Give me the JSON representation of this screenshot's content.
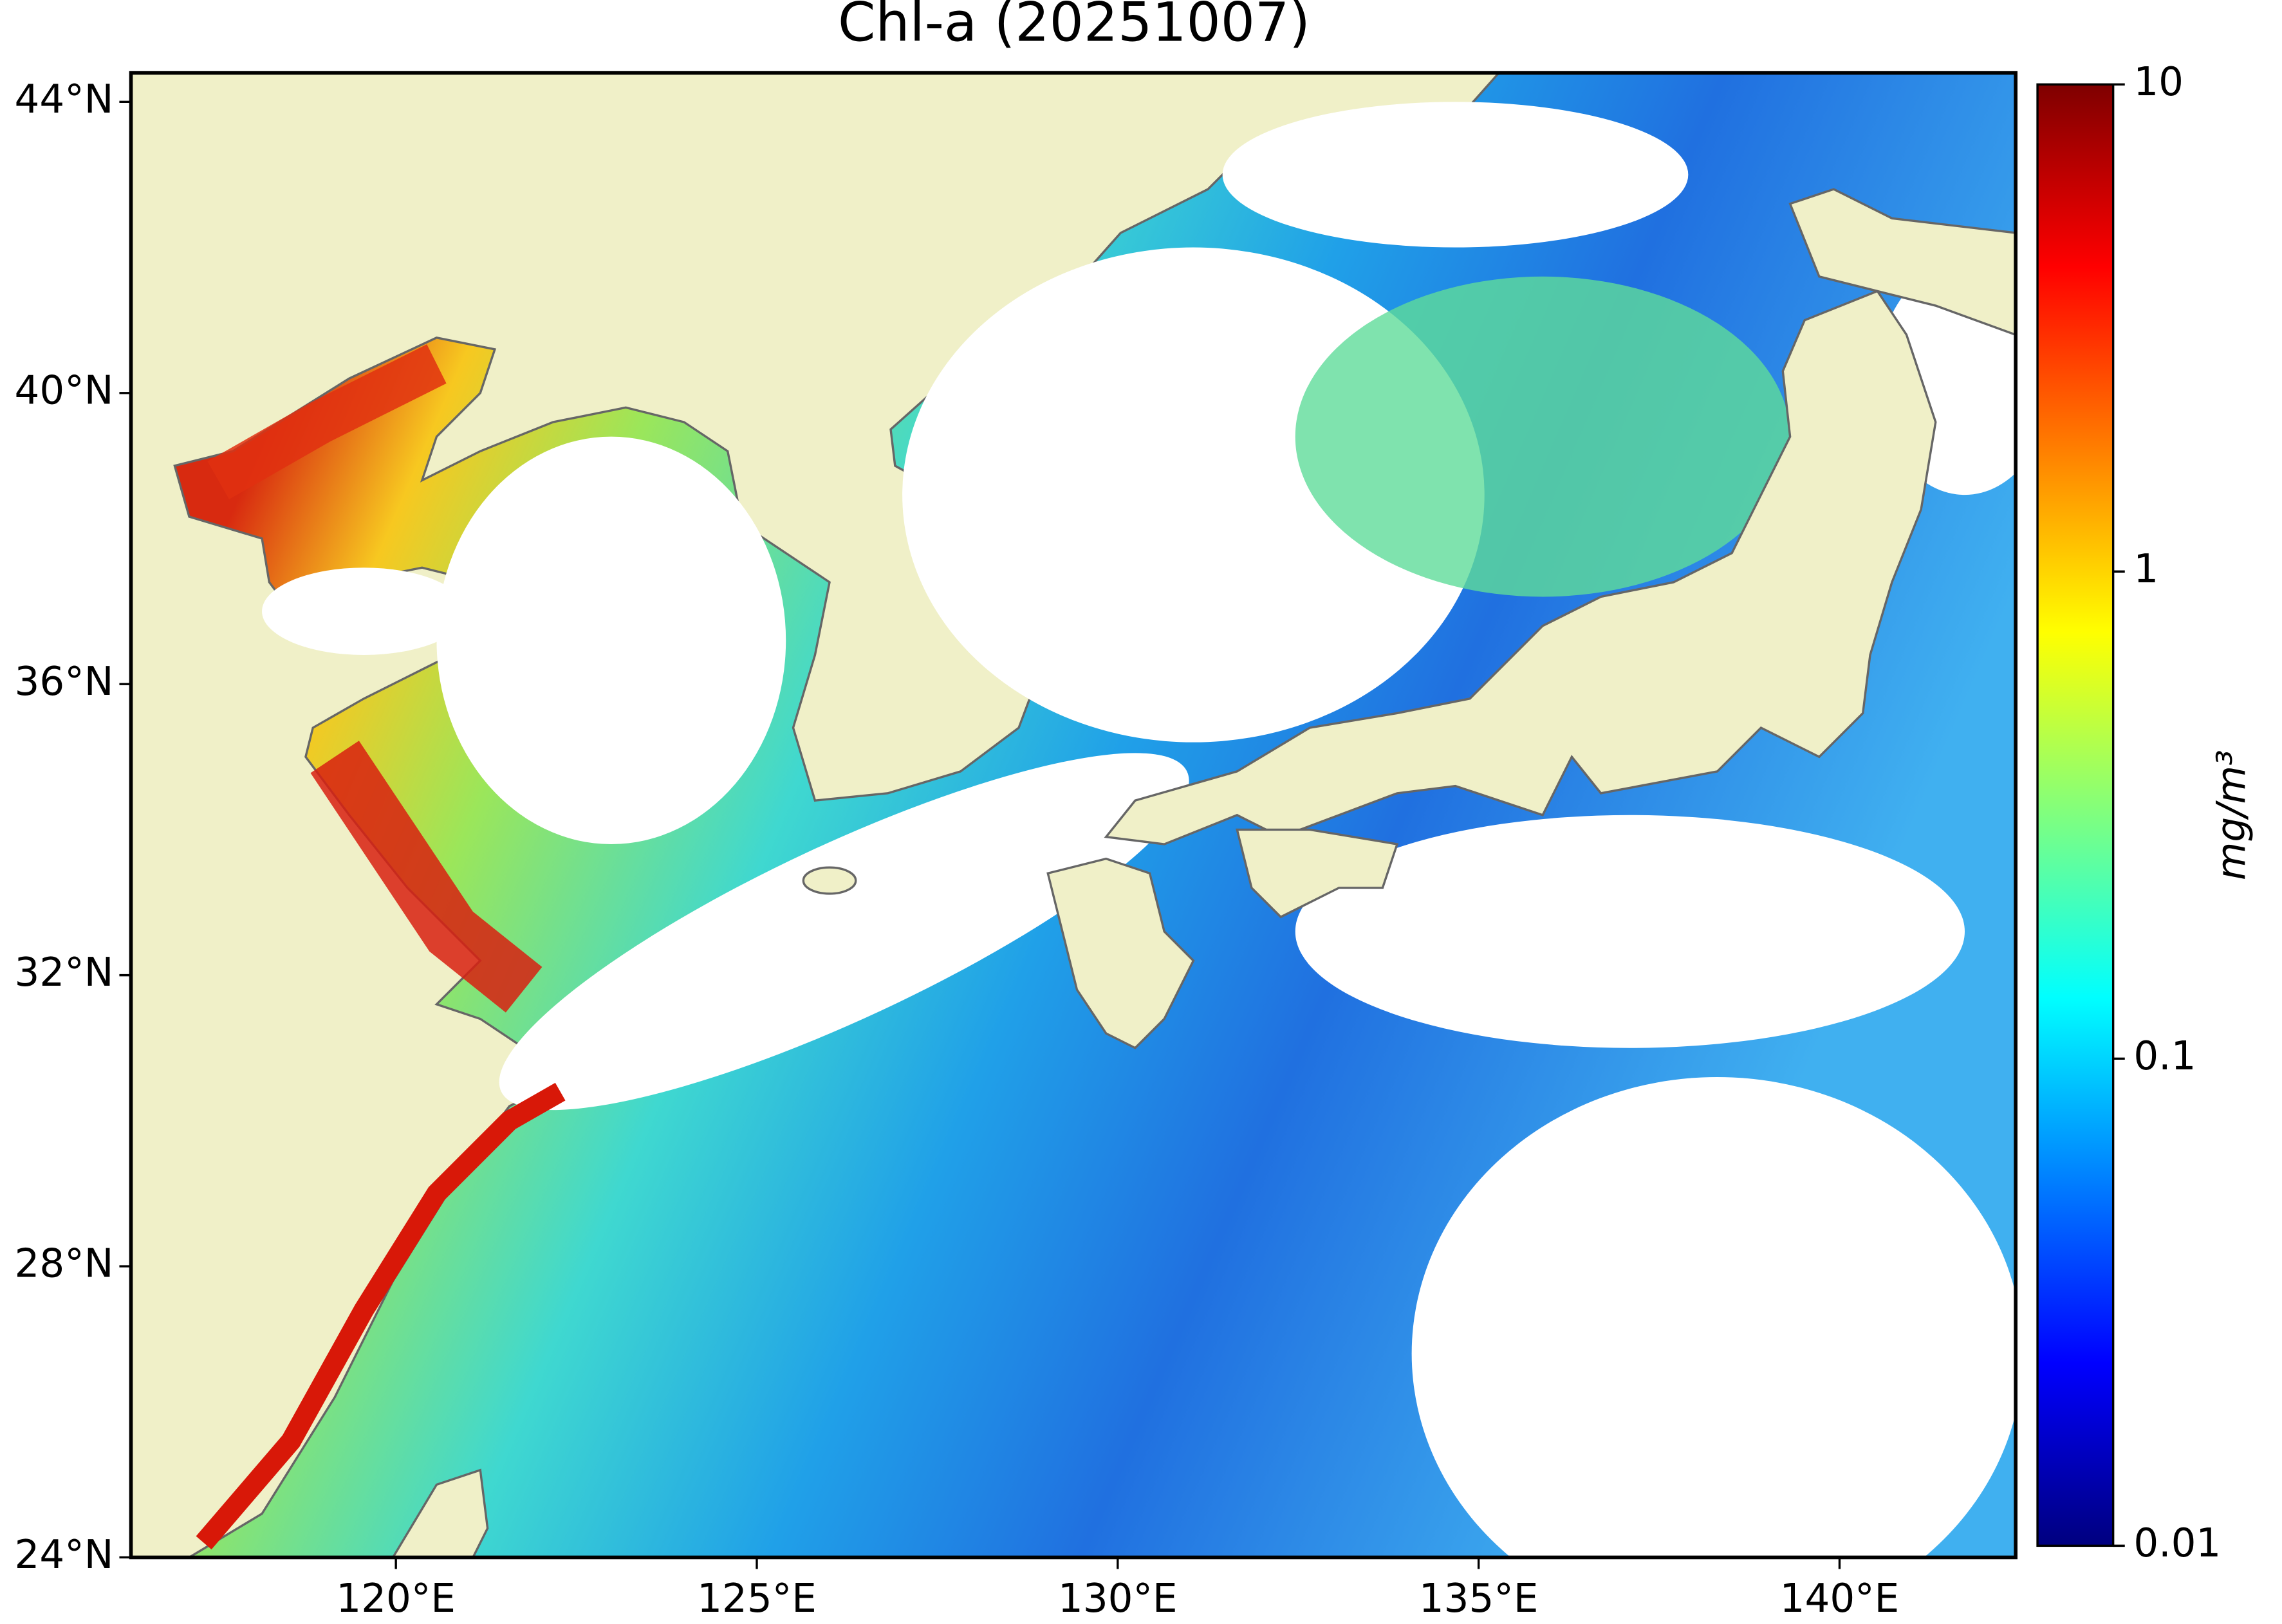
{
  "chart_data": {
    "type": "map",
    "title": "Chl-a (20251007)",
    "xlim": [
      116.33,
      142.44
    ],
    "ylim": [
      24,
      44.4
    ],
    "xticks": [
      {
        "value": 120,
        "label": "120°E"
      },
      {
        "value": 125,
        "label": "125°E"
      },
      {
        "value": 130,
        "label": "130°E"
      },
      {
        "value": 135,
        "label": "135°E"
      },
      {
        "value": 140,
        "label": "140°E"
      }
    ],
    "yticks": [
      {
        "value": 24,
        "label": "24°N"
      },
      {
        "value": 28,
        "label": "28°N"
      },
      {
        "value": 32,
        "label": "32°N"
      },
      {
        "value": 36,
        "label": "36°N"
      },
      {
        "value": 40,
        "label": "40°N"
      },
      {
        "value": 44,
        "label": "44°N"
      }
    ],
    "colorbar": {
      "label": "mg/m³",
      "lim": [
        0.01,
        10
      ],
      "ticks": [
        0.01,
        0.1,
        1,
        10
      ],
      "log": true,
      "colormap": "jet"
    }
  }
}
